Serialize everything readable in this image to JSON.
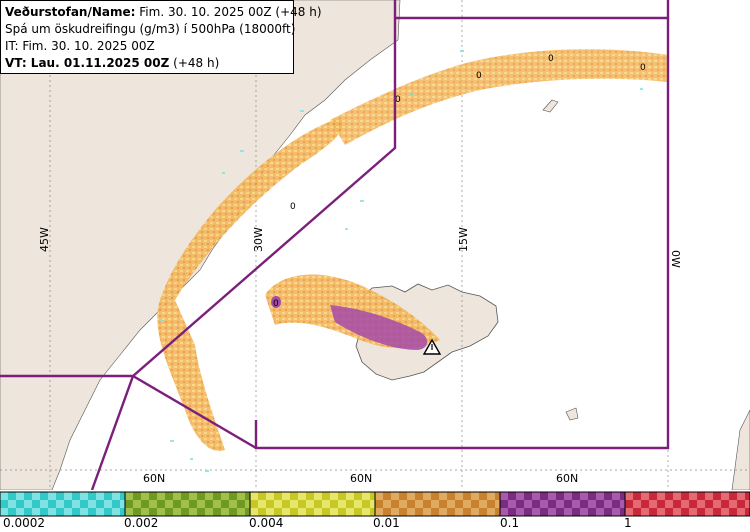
{
  "header": {
    "issuer_label": "Veðurstofan/Name:",
    "issuer_value": "Fim. 30. 10. 2025 00Z (+48 h)",
    "product": "Spá um öskudreifingu (g/m3) í 500hPa (18000ft)",
    "it_label": "IT:",
    "it_value": "Fim. 30. 10. 2025 00Z",
    "vt_label": "VT: Lau. 01.11.2025 00Z",
    "vt_value": "(+48 h)"
  },
  "map": {
    "land_color": "#eee5dc",
    "sea_color": "#ffffff",
    "boundary_color": "#7b1f7b",
    "lon_labels": [
      "45W",
      "30W",
      "15W",
      "0W"
    ],
    "lat_labels": [
      "60N",
      "60N",
      "60N"
    ],
    "contour_label": "0",
    "volcano_marker": "warning-triangle"
  },
  "legend": {
    "bins": [
      {
        "color": "#33c9c9",
        "alt": "#7fe3e3"
      },
      {
        "color": "#6e9a24",
        "alt": "#a0c04a"
      },
      {
        "color": "#c8c824",
        "alt": "#e6e66a"
      },
      {
        "color": "#c8822e",
        "alt": "#e0aa60"
      },
      {
        "color": "#7a2c7e",
        "alt": "#a95aae"
      },
      {
        "color": "#c8283a",
        "alt": "#e66a74"
      }
    ],
    "ticks": [
      "0.0002",
      "0.002",
      "0.004",
      "0.01",
      "0.1",
      "1"
    ]
  }
}
